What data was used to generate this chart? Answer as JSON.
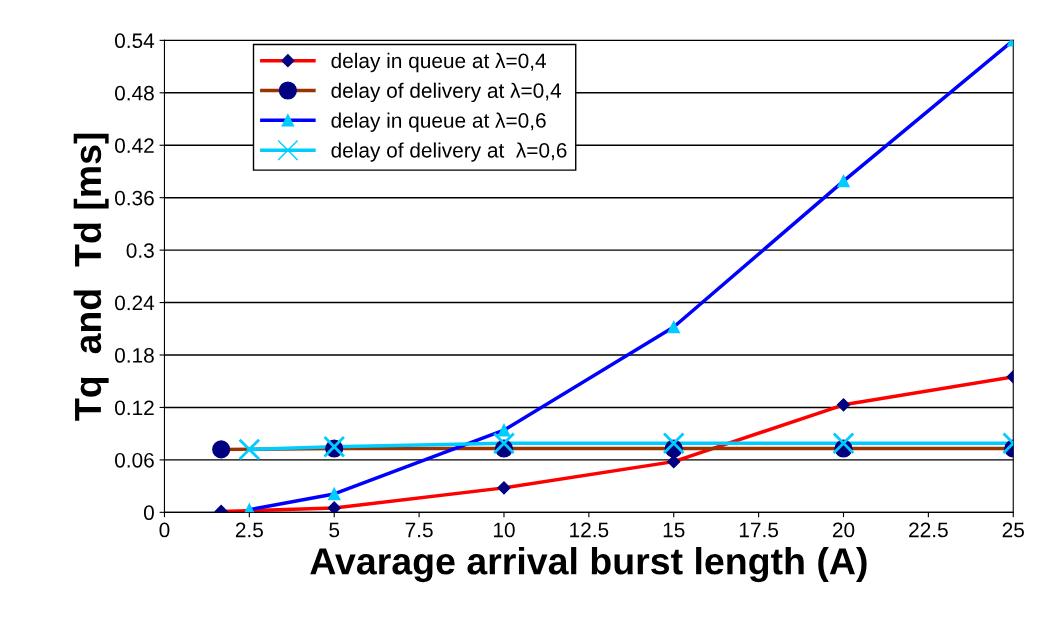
{
  "chart_data": {
    "type": "line",
    "xlabel": "Avarage arrival burst length (A)",
    "ylabel": "Tq  and  Td [ms]",
    "xlim": [
      0,
      25
    ],
    "xticks": [
      0,
      2.5,
      5,
      7.5,
      10,
      12.5,
      15,
      17.5,
      20,
      22.5,
      25
    ],
    "ylim": [
      0,
      0.54
    ],
    "yticks": [
      0,
      0.06,
      0.12,
      0.18,
      0.24,
      0.3,
      0.36,
      0.42,
      0.48,
      0.54
    ],
    "grid": "y",
    "legend": "top",
    "line_style": "solid",
    "series": [
      {
        "name": "delay in queue at λ=0,4",
        "color": "#ff0000",
        "marker": "diamond",
        "colors": [
          "#000080",
          "#000080",
          "#000080",
          "#000080",
          "#000080",
          "#000080"
        ],
        "x": [
          1.67,
          5,
          10,
          15,
          20,
          25
        ],
        "values": [
          0.001,
          0.005,
          0.028,
          0.058,
          0.123,
          0.155
        ]
      },
      {
        "name": "delay of delivery at λ=0,4",
        "color": "#993300",
        "marker": "circle",
        "colors": [
          "#000080",
          "#000080",
          "#000080",
          "#000080",
          "#000080",
          "#000080"
        ],
        "x": [
          1.67,
          5,
          10,
          15,
          20,
          25
        ],
        "values": [
          0.072,
          0.073,
          0.073,
          0.073,
          0.073,
          0.073
        ]
      },
      {
        "name": "delay in queue at λ=0,6",
        "color": "#0000ff",
        "marker": "triangle",
        "colors": [
          "#00ccff",
          "#00ccff",
          "#00ccff",
          "#00ccff",
          "#00ccff",
          "#00ccff"
        ],
        "x": [
          2.5,
          5,
          10,
          15,
          20,
          25
        ],
        "values": [
          0.003,
          0.021,
          0.094,
          0.212,
          0.379,
          0.54
        ]
      },
      {
        "name": "delay of delivery at  λ=0,6",
        "color": "#00ccff",
        "marker": "cross",
        "colors": [
          "#00ccff",
          "#00ccff",
          "#00ccff",
          "#00ccff",
          "#00ccff",
          "#00ccff"
        ],
        "x": [
          2.5,
          5,
          10,
          15,
          20,
          25
        ],
        "values": [
          0.072,
          0.075,
          0.079,
          0.079,
          0.079,
          0.079
        ]
      }
    ]
  }
}
